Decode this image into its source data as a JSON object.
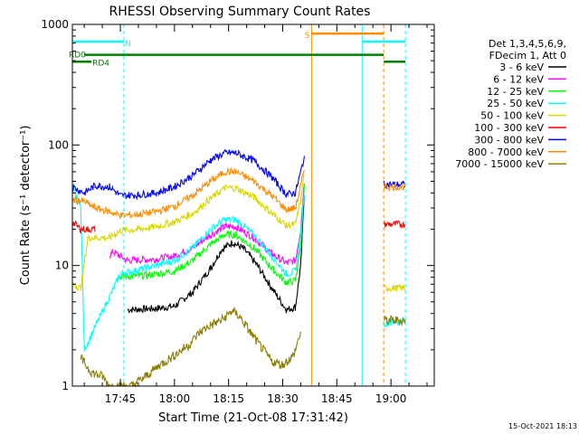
{
  "chart_data": {
    "type": "line",
    "title": "RHESSI Observing Summary Count Rates",
    "xlabel": "Start Time (21-Oct-08 17:31:42)",
    "ylabel": "Count Rate (s⁻¹ detector⁻¹)",
    "y_scale": "log",
    "ylim": [
      1,
      1000
    ],
    "xlim": [
      "17:31:42",
      "19:12:00"
    ],
    "y_ticks": [
      {
        "value": 1,
        "label": "1"
      },
      {
        "value": 10,
        "label": "10"
      },
      {
        "value": 100,
        "label": "100"
      },
      {
        "value": 1000,
        "label": "1000"
      }
    ],
    "x_ticks": [
      "17:45",
      "18:00",
      "18:15",
      "18:30",
      "18:45",
      "19:00"
    ],
    "legend_header": [
      "Det 1,3,4,5,6,9,",
      "FDecim 1, Att 0"
    ],
    "legend_position": "right",
    "timestamp": "15-Oct-2021 18:13",
    "gaps": [
      [
        "18:37:00",
        "18:58:00"
      ]
    ],
    "series": [
      {
        "name": "3 - 6 keV",
        "color": "#000000",
        "points": [
          [
            "17:47:00",
            4.3
          ],
          [
            "17:55:00",
            4.4
          ],
          [
            "18:00:00",
            4.6
          ],
          [
            "18:05:00",
            6
          ],
          [
            "18:10:00",
            9.5
          ],
          [
            "18:13:00",
            13.5
          ],
          [
            "18:16:00",
            15.5
          ],
          [
            "18:19:00",
            14
          ],
          [
            "18:23:00",
            10
          ],
          [
            "18:27:00",
            6.5
          ],
          [
            "18:31:00",
            4.3
          ],
          [
            "18:33:30",
            4.5
          ],
          [
            "18:35:00",
            10
          ],
          [
            "18:36:00",
            40
          ]
        ]
      },
      {
        "name": "6 - 12 keV",
        "color": "#ff00ff",
        "points": [
          [
            "17:42:00",
            12
          ],
          [
            "17:43:00",
            13
          ],
          [
            "17:47:00",
            11
          ],
          [
            "17:55:00",
            11.3
          ],
          [
            "18:00:00",
            12
          ],
          [
            "18:05:00",
            14
          ],
          [
            "18:10:00",
            18
          ],
          [
            "18:14:00",
            21
          ],
          [
            "18:17:00",
            21
          ],
          [
            "18:22:00",
            17
          ],
          [
            "18:27:00",
            12.5
          ],
          [
            "18:31:00",
            10.5
          ],
          [
            "18:33:30",
            11
          ],
          [
            "18:35:00",
            20
          ],
          [
            "18:36:00",
            50
          ]
        ]
      },
      {
        "name": "12 - 25 keV",
        "color": "#00ff00",
        "points": [
          [
            "17:44:00",
            8
          ],
          [
            "17:50:00",
            8.2
          ],
          [
            "17:55:00",
            8.5
          ],
          [
            "18:00:00",
            9
          ],
          [
            "18:05:00",
            11
          ],
          [
            "18:10:00",
            15
          ],
          [
            "18:14:00",
            18
          ],
          [
            "18:17:00",
            18
          ],
          [
            "18:22:00",
            14
          ],
          [
            "18:27:00",
            9.5
          ],
          [
            "18:31:00",
            7.2
          ],
          [
            "18:33:30",
            7.5
          ],
          [
            "18:35:00",
            15
          ],
          [
            "18:36:00",
            45
          ]
        ]
      },
      {
        "name": "25 - 50 keV",
        "color": "#00ffff",
        "points": [
          [
            "17:31:42",
            45
          ],
          [
            "17:33:00",
            36
          ],
          [
            "17:34:00",
            32
          ],
          [
            "17:35:00",
            2
          ],
          [
            "17:45:00",
            8.5
          ],
          [
            "17:50:00",
            9.2
          ],
          [
            "17:55:00",
            10
          ],
          [
            "18:00:00",
            11
          ],
          [
            "18:05:00",
            14
          ],
          [
            "18:10:00",
            20
          ],
          [
            "18:14:00",
            24
          ],
          [
            "18:17:00",
            24
          ],
          [
            "18:22:00",
            18
          ],
          [
            "18:27:00",
            12
          ],
          [
            "18:31:00",
            8.5
          ],
          [
            "18:33:30",
            9
          ],
          [
            "18:35:00",
            18
          ],
          [
            "18:36:00",
            40
          ],
          [
            "18:58:00",
            3.3
          ],
          [
            "19:04:00",
            3.5
          ]
        ]
      },
      {
        "name": "50 - 100 keV",
        "color": "#d8d800",
        "points": [
          [
            "17:31:42",
            7
          ],
          [
            "17:34:00",
            6.5
          ],
          [
            "17:36:00",
            17
          ],
          [
            "17:42:00",
            17
          ],
          [
            "17:45:00",
            19.5
          ],
          [
            "17:50:00",
            20
          ],
          [
            "17:55:00",
            21
          ],
          [
            "18:00:00",
            23
          ],
          [
            "18:05:00",
            27
          ],
          [
            "18:10:00",
            36
          ],
          [
            "18:14:00",
            44
          ],
          [
            "18:17:00",
            44
          ],
          [
            "18:22:00",
            37
          ],
          [
            "18:27:00",
            27
          ],
          [
            "18:31:00",
            21.5
          ],
          [
            "18:33:30",
            22
          ],
          [
            "18:35:00",
            35
          ],
          [
            "18:36:00",
            60
          ],
          [
            "18:58:00",
            6.5
          ],
          [
            "19:04:00",
            6.5
          ]
        ]
      },
      {
        "name": "100 - 300 keV",
        "color": "#ff0000",
        "points": [
          [
            "17:31:42",
            23
          ],
          [
            "17:34:00",
            20
          ],
          [
            "17:36:00",
            20
          ],
          [
            "17:38:00",
            20
          ],
          [
            "18:58:00",
            22
          ],
          [
            "19:04:00",
            22
          ]
        ]
      },
      {
        "name": "300 - 800 keV",
        "color": "#0000ff",
        "points": [
          [
            "17:31:42",
            45
          ],
          [
            "17:35:00",
            40
          ],
          [
            "17:38:00",
            46
          ],
          [
            "17:42:00",
            45
          ],
          [
            "17:45:00",
            38
          ],
          [
            "17:50:00",
            38.5
          ],
          [
            "17:55:00",
            40
          ],
          [
            "18:00:00",
            45
          ],
          [
            "18:05:00",
            56
          ],
          [
            "18:10:00",
            75
          ],
          [
            "18:14:00",
            86
          ],
          [
            "18:17:00",
            86
          ],
          [
            "18:22:00",
            74
          ],
          [
            "18:27:00",
            54
          ],
          [
            "18:31:00",
            39
          ],
          [
            "18:33:30",
            40
          ],
          [
            "18:35:00",
            60
          ],
          [
            "18:36:00",
            80
          ],
          [
            "18:58:00",
            47
          ],
          [
            "19:04:00",
            47
          ]
        ]
      },
      {
        "name": "800 - 7000 keV",
        "color": "#ff8c00",
        "points": [
          [
            "17:31:42",
            35
          ],
          [
            "17:35:00",
            34
          ],
          [
            "17:38:00",
            30
          ],
          [
            "17:42:00",
            28
          ],
          [
            "17:45:00",
            26
          ],
          [
            "17:50:00",
            26.5
          ],
          [
            "17:55:00",
            28
          ],
          [
            "18:00:00",
            31
          ],
          [
            "18:05:00",
            38
          ],
          [
            "18:10:00",
            50
          ],
          [
            "18:14:00",
            60
          ],
          [
            "18:17:00",
            60
          ],
          [
            "18:22:00",
            50
          ],
          [
            "18:27:00",
            38
          ],
          [
            "18:31:00",
            29
          ],
          [
            "18:33:30",
            30
          ],
          [
            "18:35:00",
            45
          ],
          [
            "18:36:00",
            65
          ],
          [
            "18:58:00",
            45
          ],
          [
            "19:04:00",
            45
          ]
        ]
      },
      {
        "name": "7000 - 15000 keV",
        "color": "#8b8000",
        "points": [
          [
            "17:34:00",
            1.7
          ],
          [
            "17:37:00",
            1.3
          ],
          [
            "17:40:00",
            1.2
          ],
          [
            "17:42:00",
            1
          ],
          [
            "17:48:00",
            1
          ],
          [
            "17:52:00",
            1.2
          ],
          [
            "17:56:00",
            1.5
          ],
          [
            "18:00:00",
            1.8
          ],
          [
            "18:04:00",
            2.2
          ],
          [
            "18:07:00",
            2.8
          ],
          [
            "18:10:00",
            3.2
          ],
          [
            "18:13:00",
            3.5
          ],
          [
            "18:16:00",
            4.2
          ],
          [
            "18:18:00",
            3.8
          ],
          [
            "18:21:00",
            2.8
          ],
          [
            "18:24:00",
            2.1
          ],
          [
            "18:27:00",
            1.6
          ],
          [
            "18:30:00",
            1.5
          ],
          [
            "18:33:00",
            1.8
          ],
          [
            "18:35:00",
            2.8
          ],
          [
            "18:58:00",
            3.5
          ],
          [
            "19:04:00",
            3.5
          ]
        ]
      }
    ],
    "annotations": {
      "flags": [
        {
          "label": "N",
          "color": "#00ffff",
          "segments": [
            [
              "17:31:42",
              "17:46:00"
            ],
            [
              "18:52:00",
              "19:04:00"
            ]
          ],
          "level": 720,
          "markers": [
            "17:46:00",
            "19:04:00"
          ]
        },
        {
          "label": "S",
          "color": "#ff8c00",
          "segments": [
            [
              "18:38:00",
              "18:58:00"
            ]
          ],
          "level": 840,
          "markers": [
            "18:38:00",
            "18:58:00"
          ]
        },
        {
          "label": "RD0",
          "color": "#008000",
          "segments": [
            [
              "17:35:00",
              "18:58:00"
            ]
          ],
          "level": 560
        },
        {
          "label": "RD4",
          "color": "#008000",
          "segments": [
            [
              "17:31:42",
              "17:37:00"
            ],
            [
              "18:58:00",
              "19:04:00"
            ]
          ],
          "level": 490
        }
      ],
      "vertical_lines": [
        {
          "time": "18:38:00",
          "color": "#ff8c00",
          "style": "solid"
        },
        {
          "time": "18:52:00",
          "color": "#00ffff",
          "style": "solid"
        },
        {
          "time": "18:58:00",
          "color": "#ff8c00",
          "style": "dashed"
        },
        {
          "time": "17:46:00",
          "color": "#00ffff",
          "style": "dashed"
        },
        {
          "time": "19:04:00",
          "color": "#00ffff",
          "style": "dashed"
        }
      ]
    }
  }
}
